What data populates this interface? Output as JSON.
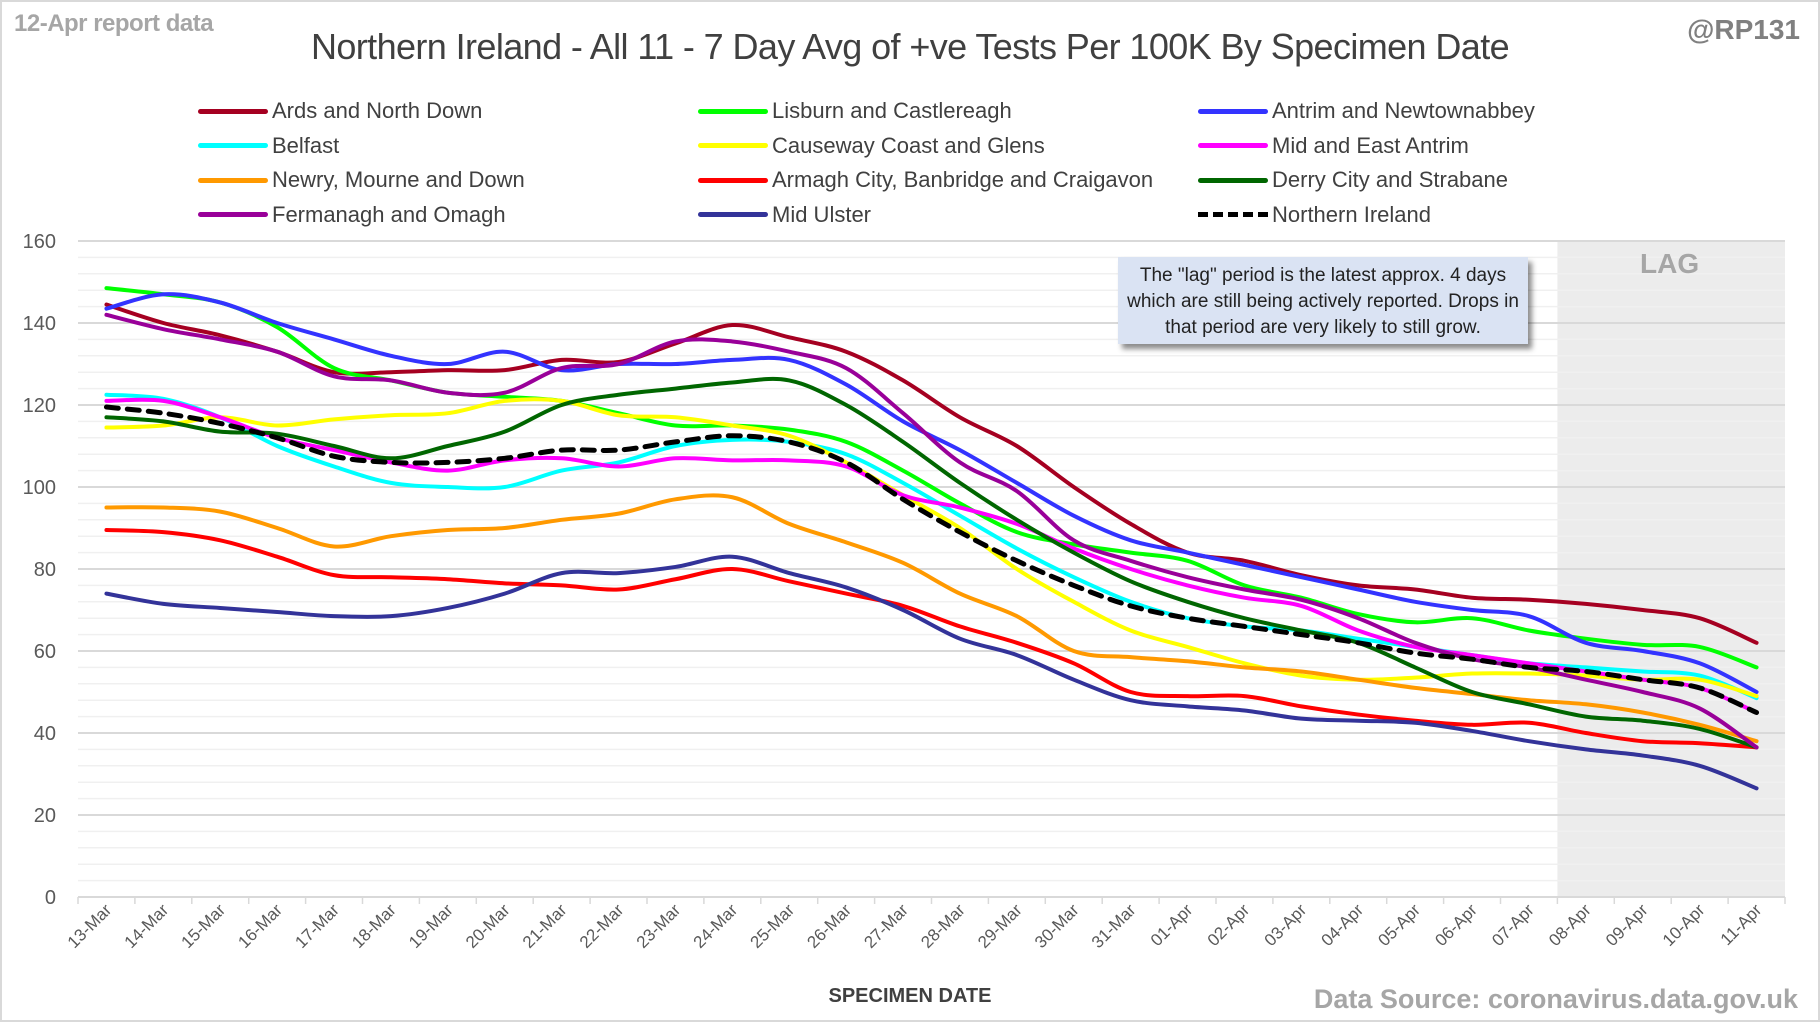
{
  "header": {
    "report_label": "12-Apr report data",
    "title": "Northern Ireland - All 11 - 7 Day Avg of +ve Tests Per 100K By Specimen Date",
    "handle": "@RP131"
  },
  "footer": {
    "source": "Data Source: coronavirus.data.gov.uk"
  },
  "annotation": {
    "text": "The \"lag\" period is the latest approx. 4 days which are still being actively reported. Drops in that period are very likely to still grow.",
    "lag_label": "LAG"
  },
  "chart_data": {
    "type": "line",
    "title": "Northern Ireland - All 11 - 7 Day Avg of +ve Tests Per 100K By Specimen Date",
    "xlabel": "SPECIMEN DATE",
    "ylabel": "",
    "ylim": [
      0,
      160
    ],
    "yticks": [
      0,
      20,
      40,
      60,
      80,
      100,
      120,
      140,
      160
    ],
    "minor_grid_step": 4,
    "grid": true,
    "legend_position": "top",
    "lag_period": {
      "start": "08-Apr",
      "end": "11-Apr",
      "label": "LAG"
    },
    "categories": [
      "13-Mar",
      "14-Mar",
      "15-Mar",
      "16-Mar",
      "17-Mar",
      "18-Mar",
      "19-Mar",
      "20-Mar",
      "21-Mar",
      "22-Mar",
      "23-Mar",
      "24-Mar",
      "25-Mar",
      "26-Mar",
      "27-Mar",
      "28-Mar",
      "29-Mar",
      "30-Mar",
      "31-Mar",
      "01-Apr",
      "02-Apr",
      "03-Apr",
      "04-Apr",
      "05-Apr",
      "06-Apr",
      "07-Apr",
      "08-Apr",
      "09-Apr",
      "10-Apr",
      "11-Apr"
    ],
    "series": [
      {
        "name": "Ards and North Down",
        "color": "#a50021",
        "dashed": false,
        "values": [
          144.5,
          140,
          137,
          133,
          128,
          128,
          128.5,
          128.5,
          131,
          130.5,
          135,
          139.5,
          136.5,
          133,
          126,
          117,
          110,
          100,
          91,
          84,
          82,
          78.5,
          76,
          75,
          73,
          72.5,
          71.5,
          70,
          68,
          62
        ]
      },
      {
        "name": "Lisburn and Castlereagh",
        "color": "#00ff00",
        "dashed": false,
        "values": [
          148.5,
          147,
          145,
          139,
          129,
          126,
          123,
          122,
          121,
          118,
          115,
          115,
          114,
          111,
          104,
          96,
          89,
          86,
          84,
          82,
          76,
          73,
          69,
          67,
          68,
          65,
          63,
          61.5,
          61,
          56
        ]
      },
      {
        "name": "Antrim and Newtownabbey",
        "color": "#3333ff",
        "dashed": false,
        "values": [
          143.5,
          147,
          145,
          140,
          136,
          132,
          130,
          133,
          128.5,
          130,
          130,
          131,
          131,
          125,
          116,
          109,
          101,
          93,
          87,
          84,
          81,
          78,
          75,
          72,
          70,
          68.5,
          62,
          60,
          57,
          50
        ]
      },
      {
        "name": "Belfast",
        "color": "#00ffff",
        "dashed": false,
        "values": [
          122.5,
          121.5,
          117,
          110,
          105,
          101,
          100,
          100,
          104,
          106,
          110,
          111.5,
          111,
          108,
          101,
          93,
          85,
          78,
          72,
          68,
          66,
          65,
          63,
          61,
          59,
          57,
          56,
          55,
          54,
          48.5
        ]
      },
      {
        "name": "Causeway Coast and Glens",
        "color": "#ffff00",
        "dashed": false,
        "values": [
          114.5,
          115,
          117,
          115,
          116.5,
          117.5,
          118,
          121,
          121,
          117.5,
          117,
          115,
          112.5,
          106,
          98,
          90,
          80,
          72,
          65,
          61,
          57,
          54,
          53,
          53.5,
          54.5,
          54.5,
          54,
          53,
          53,
          49
        ]
      },
      {
        "name": "Mid and East Antrim",
        "color": "#ff00ff",
        "dashed": false,
        "values": [
          121,
          121,
          117,
          112,
          109,
          106,
          104,
          106.5,
          107,
          105,
          107,
          106.5,
          106.5,
          105,
          98,
          95,
          91,
          85,
          80,
          76,
          73,
          71,
          65,
          61,
          59,
          57,
          55,
          53,
          51,
          45
        ]
      },
      {
        "name": "Newry, Mourne and Down",
        "color": "#ff9900",
        "dashed": false,
        "values": [
          95,
          95,
          94,
          90,
          85.5,
          88,
          89.5,
          90,
          92,
          93.5,
          97,
          97.5,
          91,
          86.5,
          81.5,
          74,
          68.5,
          60,
          58.5,
          57.5,
          56,
          55,
          53,
          51,
          49.5,
          48,
          47,
          45,
          42,
          38
        ]
      },
      {
        "name": "Armagh City, Banbridge and Craigavon",
        "color": "#ff0000",
        "dashed": false,
        "values": [
          89.5,
          89,
          87,
          83,
          78.5,
          78,
          77.5,
          76.5,
          76,
          75,
          77.5,
          80,
          77,
          74,
          71,
          66,
          62,
          57,
          50,
          49,
          49,
          46.5,
          44.5,
          43,
          42,
          42.5,
          40,
          38,
          37.5,
          36.5
        ]
      },
      {
        "name": "Derry City and Strabane",
        "color": "#006600",
        "dashed": false,
        "values": [
          117,
          116,
          113.5,
          113,
          110,
          107,
          110,
          113.5,
          120,
          122.5,
          124,
          125.5,
          126,
          120,
          111,
          101,
          92,
          84,
          77,
          72,
          68,
          65,
          62,
          56,
          50,
          47,
          44,
          43,
          41,
          36.5
        ]
      },
      {
        "name": "Fermanagh and Omagh",
        "color": "#990099",
        "dashed": false,
        "values": [
          142,
          138.5,
          136,
          133,
          127,
          126,
          123,
          123,
          129,
          130,
          135.5,
          135.5,
          133,
          129,
          118,
          106,
          99,
          87,
          82,
          78,
          75,
          72.5,
          68,
          62,
          58,
          56,
          53,
          50,
          46,
          36.5
        ]
      },
      {
        "name": "Mid Ulster",
        "color": "#333399",
        "dashed": false,
        "values": [
          74,
          71.5,
          70.5,
          69.5,
          68.5,
          68.5,
          70.5,
          74,
          79,
          79,
          80.5,
          83,
          79,
          75.5,
          70,
          63,
          59,
          53,
          48,
          46.5,
          45.5,
          43.5,
          43,
          42.5,
          40.5,
          38,
          36,
          34.5,
          32,
          26.5
        ]
      },
      {
        "name": "Northern Ireland",
        "color": "#000000",
        "dashed": true,
        "values": [
          119.5,
          118,
          115.5,
          112,
          107.5,
          106,
          106,
          107,
          109,
          109,
          111,
          112.5,
          111,
          106,
          97,
          89,
          82,
          76,
          71,
          68,
          66,
          64,
          62,
          59.5,
          58,
          56,
          55,
          53,
          51,
          45
        ]
      }
    ],
    "legend_order": [
      [
        "Ards and North Down",
        "Lisburn and Castlereagh",
        "Antrim and Newtownabbey"
      ],
      [
        "Belfast",
        "Causeway Coast and Glens",
        "Mid and East Antrim"
      ],
      [
        "Newry, Mourne and Down",
        "Armagh City, Banbridge and Craigavon",
        "Derry City and Strabane"
      ],
      [
        "Fermanagh and Omagh",
        "Mid Ulster",
        "Northern Ireland"
      ]
    ]
  }
}
